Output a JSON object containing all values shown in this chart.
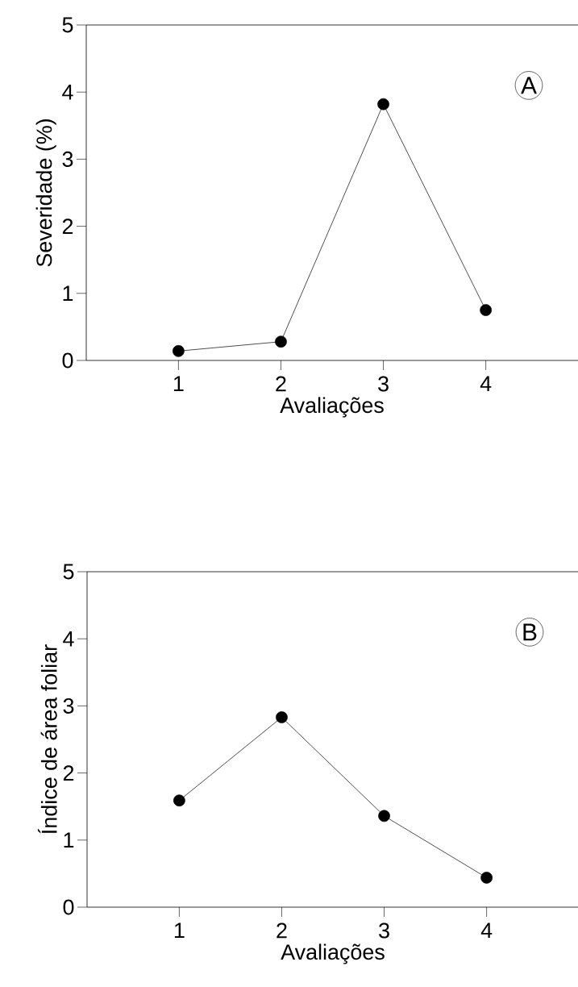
{
  "chart_data": [
    {
      "type": "line",
      "x": [
        1,
        2,
        3,
        4
      ],
      "values": [
        0.14,
        0.28,
        3.82,
        0.75
      ],
      "color": "#000000",
      "marker": "circle",
      "xlim": [
        0.1,
        4.9
      ],
      "ylim": [
        0,
        5
      ],
      "xticks": [
        1,
        2,
        3,
        4
      ],
      "yticks": [
        0,
        1,
        2,
        3,
        4,
        5
      ],
      "xlabel": "Avaliações",
      "ylabel": "Severidade (%)",
      "annotations": [
        "A"
      ]
    },
    {
      "type": "line",
      "x": [
        1,
        2,
        3,
        4
      ],
      "values": [
        1.59,
        2.83,
        1.36,
        0.44
      ],
      "color": "#000000",
      "marker": "circle",
      "xlim": [
        0.1,
        4.9
      ],
      "ylim": [
        0,
        5
      ],
      "xticks": [
        1,
        2,
        3,
        4
      ],
      "yticks": [
        0,
        1,
        2,
        3,
        4,
        5
      ],
      "xlabel": "Avaliações",
      "ylabel": "Índice de área foliar",
      "annotations": [
        "B"
      ]
    }
  ]
}
